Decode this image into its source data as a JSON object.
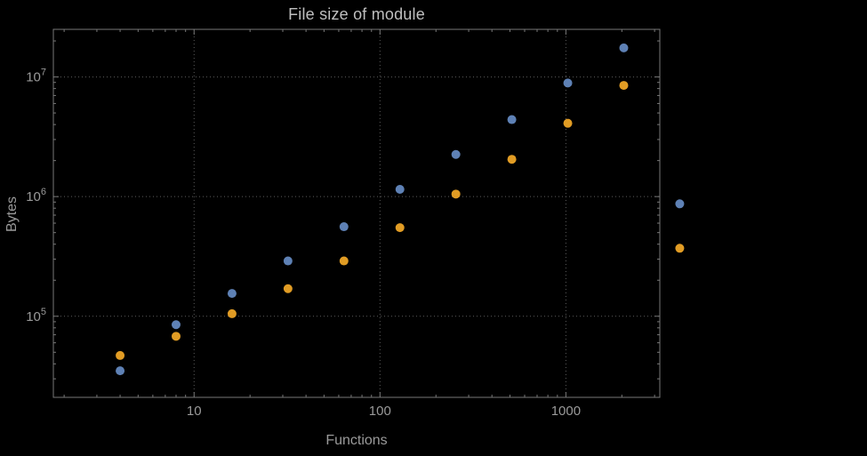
{
  "page": {
    "background": "#000000"
  },
  "chart_data": {
    "type": "scatter",
    "title": "File size of module",
    "xlabel": "Functions",
    "ylabel": "Bytes",
    "x_scale": "log",
    "y_scale": "log",
    "xlim": [
      1.75,
      3200
    ],
    "ylim": [
      21000,
      25000000
    ],
    "x_ticks": [
      10,
      100,
      1000
    ],
    "x_tick_labels": [
      "10",
      "100",
      "1000"
    ],
    "y_ticks": [
      100000,
      1000000,
      10000000
    ],
    "y_tick_mantissa": "10",
    "y_tick_exponents": [
      "5",
      "6",
      "7"
    ],
    "grid": "dotted-major",
    "legend_position": "none",
    "x": [
      4,
      8,
      16,
      32,
      64,
      128,
      256,
      512,
      1024,
      2048,
      4096
    ],
    "series": [
      {
        "name": "series-blue",
        "color": "#5E81B5",
        "values": [
          35000,
          85000,
          155000,
          290000,
          560000,
          1150000,
          2250000,
          4400000,
          8900000,
          17500000,
          870000
        ]
      },
      {
        "name": "series-orange",
        "color": "#E19C24",
        "values": [
          47000,
          68000,
          105000,
          170000,
          290000,
          550000,
          1050000,
          2050000,
          4100000,
          8500000,
          370000
        ]
      }
    ],
    "colors": {
      "frame": "#787878",
      "grid": "#5c5c5c",
      "tick_label": "#9a9a9a",
      "axis_label": "#9a9a9a",
      "title": "#bfbfbf"
    }
  }
}
